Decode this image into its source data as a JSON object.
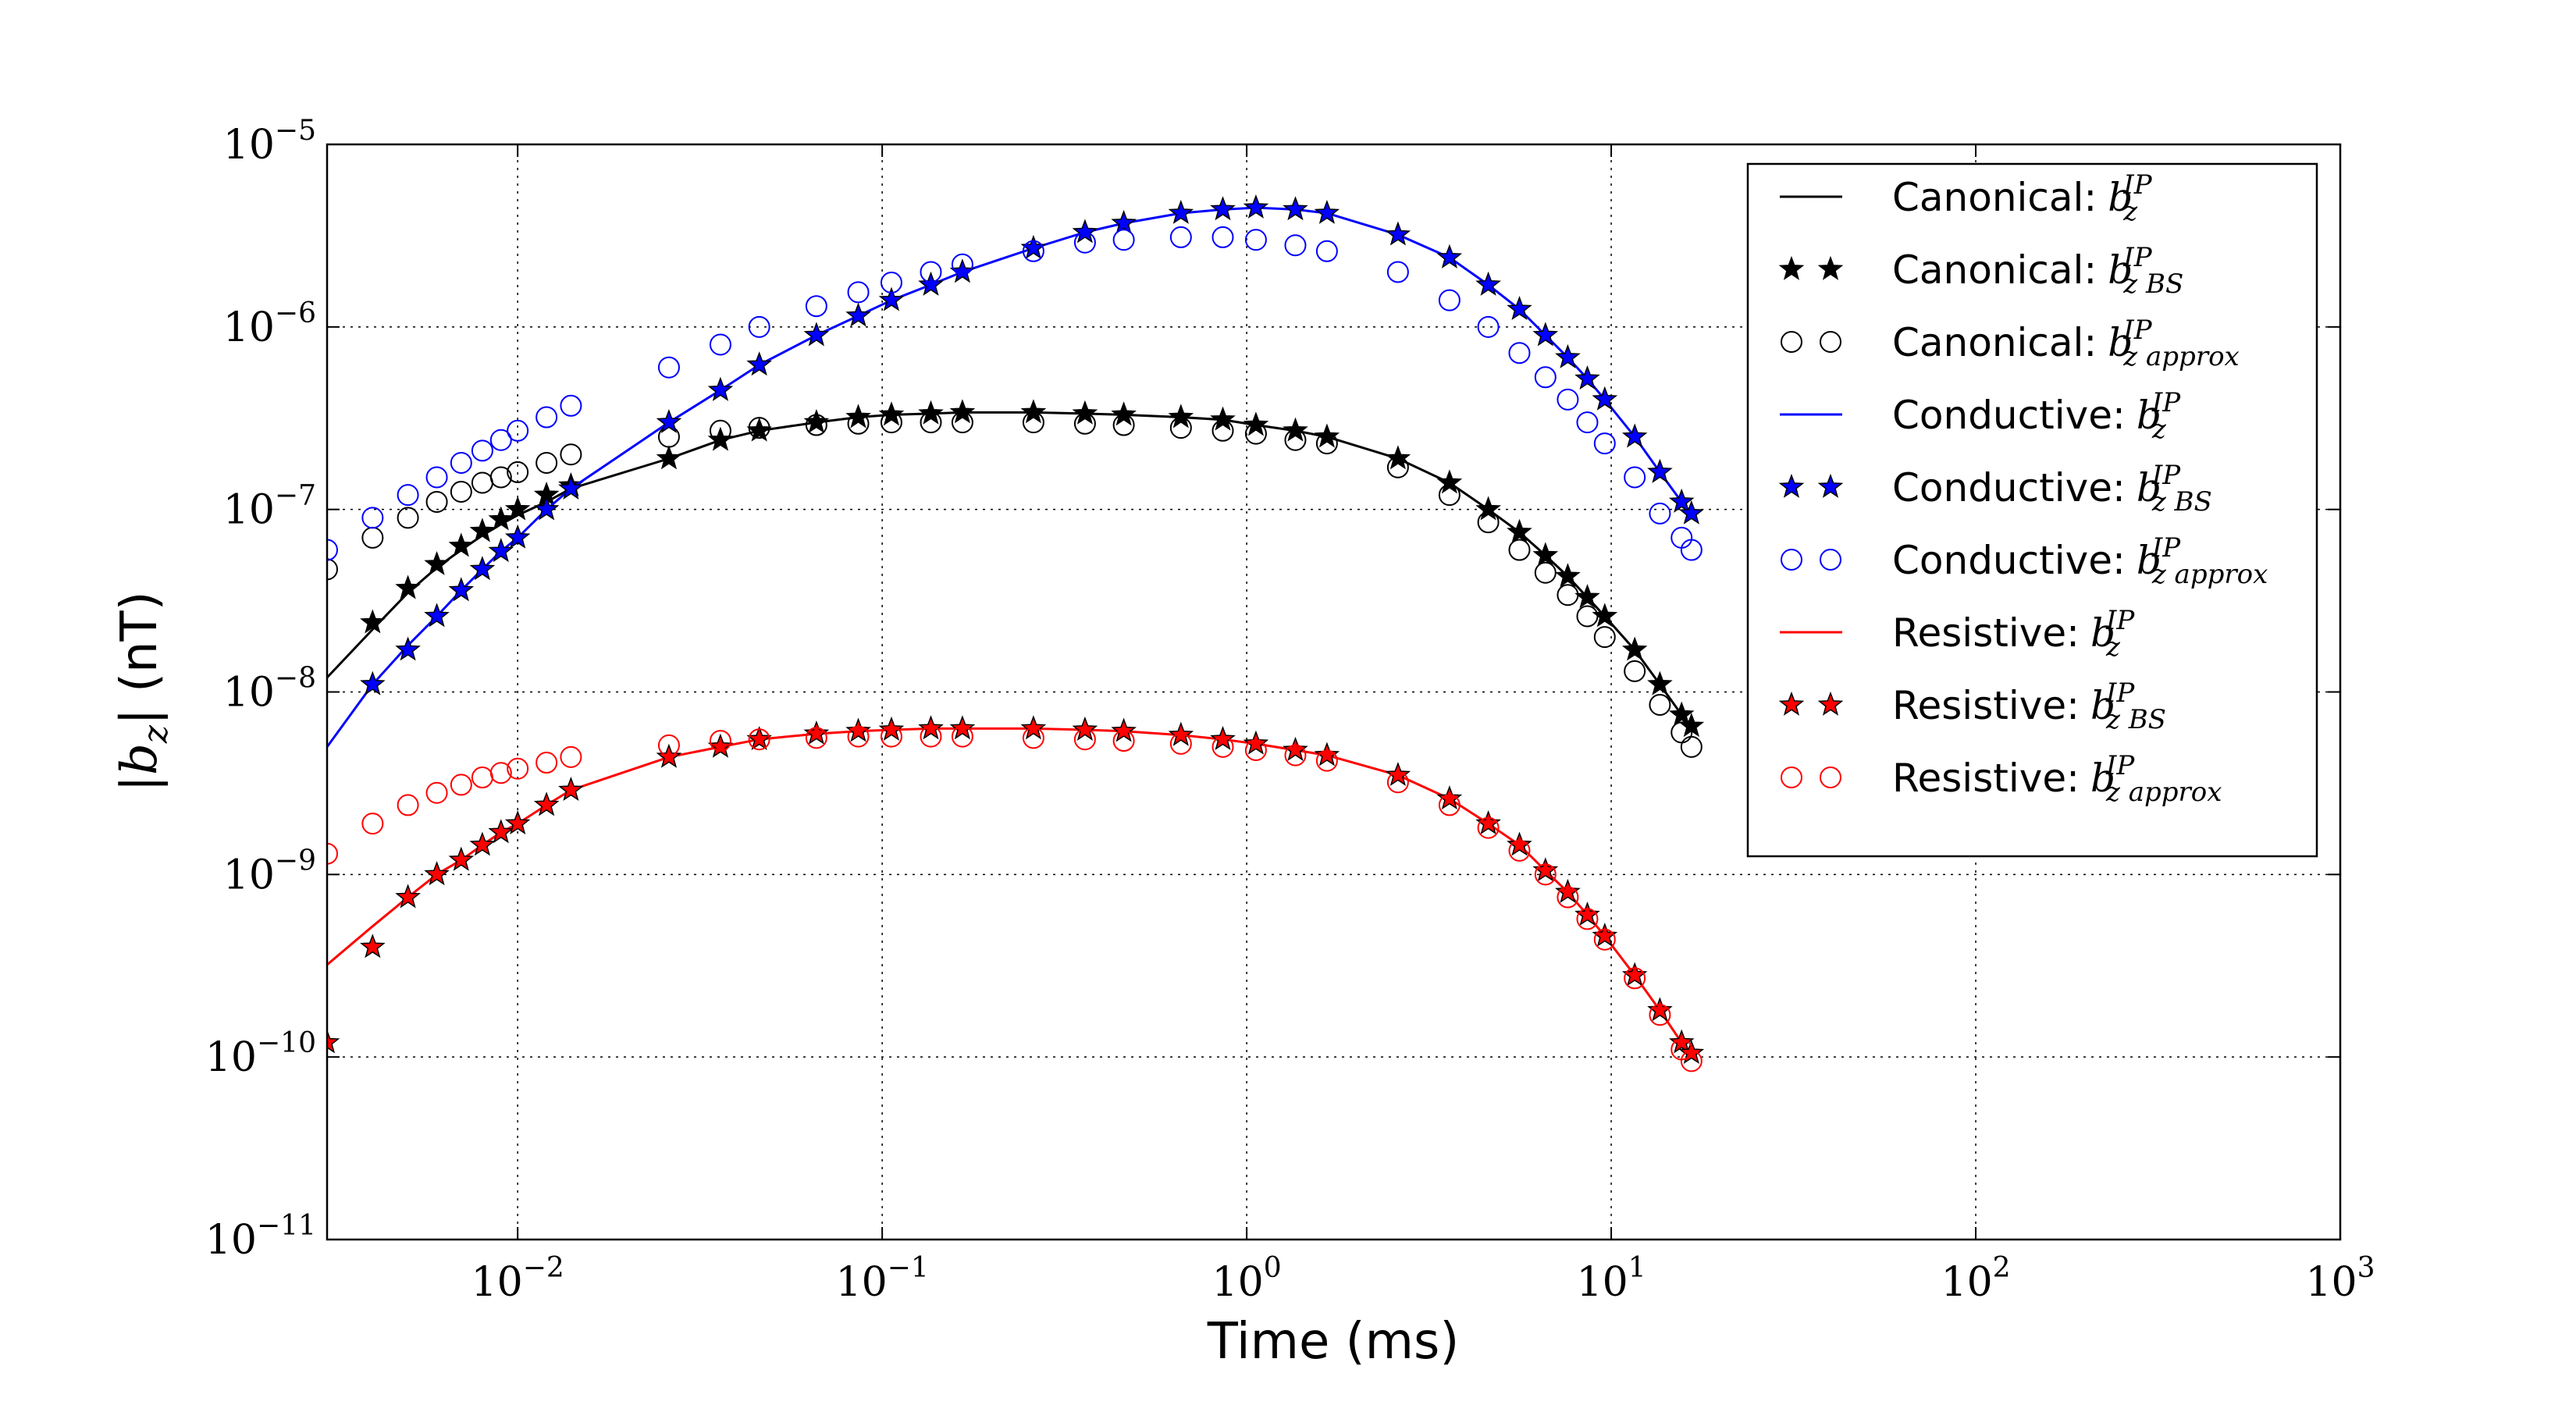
{
  "chart_data": {
    "type": "line",
    "xlabel": "Time (ms)",
    "ylabel": {
      "pre": "|b",
      "sub": "z",
      "post": "| (nT)"
    },
    "xscale": "log",
    "yscale": "log",
    "grid": true,
    "legend": "upper right",
    "xlim": [
      0.003,
      1000
    ],
    "ylim": [
      1e-11,
      1e-05
    ],
    "xticks": [
      {
        "value": 0.01,
        "label": {
          "base": "10",
          "exponent": "−2"
        }
      },
      {
        "value": 0.1,
        "label": {
          "base": "10",
          "exponent": "−1"
        }
      },
      {
        "value": 1,
        "label": {
          "base": "10",
          "exponent": "0"
        }
      },
      {
        "value": 10,
        "label": {
          "base": "10",
          "exponent": "1"
        }
      },
      {
        "value": 100,
        "label": {
          "base": "10",
          "exponent": "2"
        }
      },
      {
        "value": 1000,
        "label": {
          "base": "10",
          "exponent": "3"
        }
      }
    ],
    "yticks": [
      {
        "value": 1e-11,
        "label": {
          "base": "10",
          "exponent": "−11"
        }
      },
      {
        "value": 1e-10,
        "label": {
          "base": "10",
          "exponent": "−10"
        }
      },
      {
        "value": 1e-09,
        "label": {
          "base": "10",
          "exponent": "−9"
        }
      },
      {
        "value": 1e-08,
        "label": {
          "base": "10",
          "exponent": "−8"
        }
      },
      {
        "value": 1e-07,
        "label": {
          "base": "10",
          "exponent": "−7"
        }
      },
      {
        "value": 1e-06,
        "label": {
          "base": "10",
          "exponent": "−6"
        }
      },
      {
        "value": 1e-05,
        "label": {
          "base": "10",
          "exponent": "−5"
        }
      }
    ],
    "x": [
      0.003,
      0.004,
      0.005,
      0.006,
      0.007,
      0.008,
      0.009,
      0.01,
      0.012,
      0.014,
      0.026,
      0.036,
      0.046,
      0.066,
      0.086,
      0.106,
      0.136,
      0.166,
      0.26,
      0.36,
      0.46,
      0.66,
      0.86,
      1.06,
      1.36,
      1.66,
      2.6,
      3.6,
      4.6,
      5.6,
      6.6,
      7.6,
      8.6,
      9.6,
      11.6,
      13.6,
      15.6,
      16.6
    ],
    "series": [
      {
        "name": "Canonical:",
        "symbol": {
          "base": "b",
          "sup": "IP",
          "sub": "z"
        },
        "color": "#000000",
        "marker": "line",
        "values": [
          1.2e-08,
          2.2e-08,
          3.5e-08,
          4.8e-08,
          6e-08,
          7.2e-08,
          8.3e-08,
          9.3e-08,
          1.1e-07,
          1.3e-07,
          1.9e-07,
          2.4e-07,
          2.7e-07,
          3e-07,
          3.2e-07,
          3.3e-07,
          3.35e-07,
          3.4e-07,
          3.4e-07,
          3.35e-07,
          3.3e-07,
          3.2e-07,
          3.1e-07,
          2.9e-07,
          2.7e-07,
          2.5e-07,
          1.9e-07,
          1.4e-07,
          1e-07,
          7.5e-08,
          5.6e-08,
          4.3e-08,
          3.3e-08,
          2.6e-08,
          1.7e-08,
          1.1e-08,
          7.5e-09,
          6.5e-09
        ]
      },
      {
        "name": "Canonical:",
        "symbol": {
          "base": "b",
          "sup": "IP",
          "sub": "z BS"
        },
        "color": "#000000",
        "marker": "star",
        "values": [
          null,
          2.4e-08,
          3.7e-08,
          5e-08,
          6.3e-08,
          7.6e-08,
          8.8e-08,
          1e-07,
          1.2e-07,
          1.35e-07,
          1.9e-07,
          2.4e-07,
          2.7e-07,
          3e-07,
          3.2e-07,
          3.3e-07,
          3.35e-07,
          3.4e-07,
          3.4e-07,
          3.35e-07,
          3.3e-07,
          3.2e-07,
          3.1e-07,
          2.9e-07,
          2.7e-07,
          2.5e-07,
          1.9e-07,
          1.4e-07,
          1e-07,
          7.5e-08,
          5.6e-08,
          4.3e-08,
          3.3e-08,
          2.6e-08,
          1.7e-08,
          1.1e-08,
          7.5e-09,
          6.5e-09
        ]
      },
      {
        "name": "Canonical:",
        "symbol": {
          "base": "b",
          "sup": "IP",
          "sub": "z approx"
        },
        "color": "#000000",
        "marker": "circle",
        "values": [
          4.7e-08,
          7e-08,
          9e-08,
          1.1e-07,
          1.25e-07,
          1.4e-07,
          1.5e-07,
          1.6e-07,
          1.8e-07,
          2e-07,
          2.5e-07,
          2.7e-07,
          2.8e-07,
          2.9e-07,
          2.95e-07,
          3e-07,
          3e-07,
          3e-07,
          3e-07,
          2.95e-07,
          2.9e-07,
          2.8e-07,
          2.7e-07,
          2.6e-07,
          2.4e-07,
          2.3e-07,
          1.7e-07,
          1.2e-07,
          8.5e-08,
          6e-08,
          4.5e-08,
          3.4e-08,
          2.6e-08,
          2e-08,
          1.3e-08,
          8.5e-09,
          6e-09,
          5e-09
        ]
      },
      {
        "name": "Conductive:",
        "symbol": {
          "base": "b",
          "sup": "IP",
          "sub": "z"
        },
        "color": "#0000ff",
        "marker": "line",
        "values": [
          5e-09,
          1.1e-08,
          1.8e-08,
          2.6e-08,
          3.6e-08,
          4.7e-08,
          5.9e-08,
          7e-08,
          1e-07,
          1.3e-07,
          3e-07,
          4.5e-07,
          6.2e-07,
          9e-07,
          1.15e-06,
          1.4e-06,
          1.7e-06,
          2e-06,
          2.7e-06,
          3.3e-06,
          3.7e-06,
          4.2e-06,
          4.4e-06,
          4.5e-06,
          4.4e-06,
          4.2e-06,
          3.2e-06,
          2.4e-06,
          1.7e-06,
          1.25e-06,
          9e-07,
          6.8e-07,
          5.2e-07,
          4e-07,
          2.5e-07,
          1.6e-07,
          1.1e-07,
          9.5e-08
        ]
      },
      {
        "name": "Conductive:",
        "symbol": {
          "base": "b",
          "sup": "IP",
          "sub": "z BS"
        },
        "color": "#0000ff",
        "marker": "star",
        "values": [
          null,
          1.1e-08,
          1.7e-08,
          2.6e-08,
          3.6e-08,
          4.7e-08,
          5.9e-08,
          7e-08,
          1e-07,
          1.3e-07,
          3e-07,
          4.5e-07,
          6.2e-07,
          9e-07,
          1.15e-06,
          1.4e-06,
          1.7e-06,
          2e-06,
          2.7e-06,
          3.3e-06,
          3.7e-06,
          4.2e-06,
          4.4e-06,
          4.5e-06,
          4.4e-06,
          4.2e-06,
          3.2e-06,
          2.4e-06,
          1.7e-06,
          1.25e-06,
          9e-07,
          6.8e-07,
          5.2e-07,
          4e-07,
          2.5e-07,
          1.6e-07,
          1.1e-07,
          9.5e-08
        ]
      },
      {
        "name": "Conductive:",
        "symbol": {
          "base": "b",
          "sup": "IP",
          "sub": "z approx"
        },
        "color": "#0000ff",
        "marker": "circle",
        "values": [
          6e-08,
          9e-08,
          1.2e-07,
          1.5e-07,
          1.8e-07,
          2.1e-07,
          2.4e-07,
          2.7e-07,
          3.2e-07,
          3.7e-07,
          6e-07,
          8e-07,
          1e-06,
          1.3e-06,
          1.55e-06,
          1.75e-06,
          2e-06,
          2.2e-06,
          2.6e-06,
          2.9e-06,
          3e-06,
          3.1e-06,
          3.1e-06,
          3e-06,
          2.8e-06,
          2.6e-06,
          2e-06,
          1.4e-06,
          1e-06,
          7.2e-07,
          5.3e-07,
          4e-07,
          3e-07,
          2.3e-07,
          1.5e-07,
          9.5e-08,
          7e-08,
          6e-08
        ]
      },
      {
        "name": "Resistive:",
        "symbol": {
          "base": "b",
          "sup": "IP",
          "sub": "z"
        },
        "color": "#ff0000",
        "marker": "line",
        "values": [
          3.2e-10,
          5.2e-10,
          7.5e-10,
          1e-09,
          1.2e-09,
          1.45e-09,
          1.7e-09,
          1.9e-09,
          2.4e-09,
          2.9e-09,
          4.4e-09,
          5e-09,
          5.5e-09,
          5.9e-09,
          6.1e-09,
          6.2e-09,
          6.3e-09,
          6.3e-09,
          6.3e-09,
          6.2e-09,
          6.1e-09,
          5.8e-09,
          5.5e-09,
          5.2e-09,
          4.8e-09,
          4.5e-09,
          3.5e-09,
          2.6e-09,
          1.9e-09,
          1.45e-09,
          1.05e-09,
          8e-10,
          6e-10,
          4.6e-10,
          2.8e-10,
          1.8e-10,
          1.2e-10,
          1.05e-10
        ]
      },
      {
        "name": "Resistive:",
        "symbol": {
          "base": "b",
          "sup": "IP",
          "sub": "z BS"
        },
        "color": "#ff0000",
        "marker": "star",
        "values": [
          1.2e-10,
          4e-10,
          7.5e-10,
          1e-09,
          1.2e-09,
          1.45e-09,
          1.7e-09,
          1.9e-09,
          2.4e-09,
          2.9e-09,
          4.4e-09,
          5e-09,
          5.5e-09,
          5.9e-09,
          6.1e-09,
          6.2e-09,
          6.3e-09,
          6.3e-09,
          6.3e-09,
          6.2e-09,
          6.1e-09,
          5.8e-09,
          5.5e-09,
          5.2e-09,
          4.8e-09,
          4.5e-09,
          3.5e-09,
          2.6e-09,
          1.9e-09,
          1.45e-09,
          1.05e-09,
          8e-10,
          6e-10,
          4.6e-10,
          2.8e-10,
          1.8e-10,
          1.2e-10,
          1.05e-10
        ]
      },
      {
        "name": "Resistive:",
        "symbol": {
          "base": "b",
          "sup": "IP",
          "sub": "z approx"
        },
        "color": "#ff0000",
        "marker": "circle",
        "values": [
          1.3e-09,
          1.9e-09,
          2.4e-09,
          2.8e-09,
          3.1e-09,
          3.4e-09,
          3.6e-09,
          3.8e-09,
          4.1e-09,
          4.4e-09,
          5.1e-09,
          5.4e-09,
          5.5e-09,
          5.6e-09,
          5.7e-09,
          5.7e-09,
          5.7e-09,
          5.7e-09,
          5.6e-09,
          5.5e-09,
          5.4e-09,
          5.2e-09,
          5e-09,
          4.8e-09,
          4.5e-09,
          4.2e-09,
          3.2e-09,
          2.4e-09,
          1.8e-09,
          1.35e-09,
          1e-09,
          7.5e-10,
          5.7e-10,
          4.4e-10,
          2.7e-10,
          1.7e-10,
          1.1e-10,
          9.5e-11
        ]
      }
    ]
  }
}
